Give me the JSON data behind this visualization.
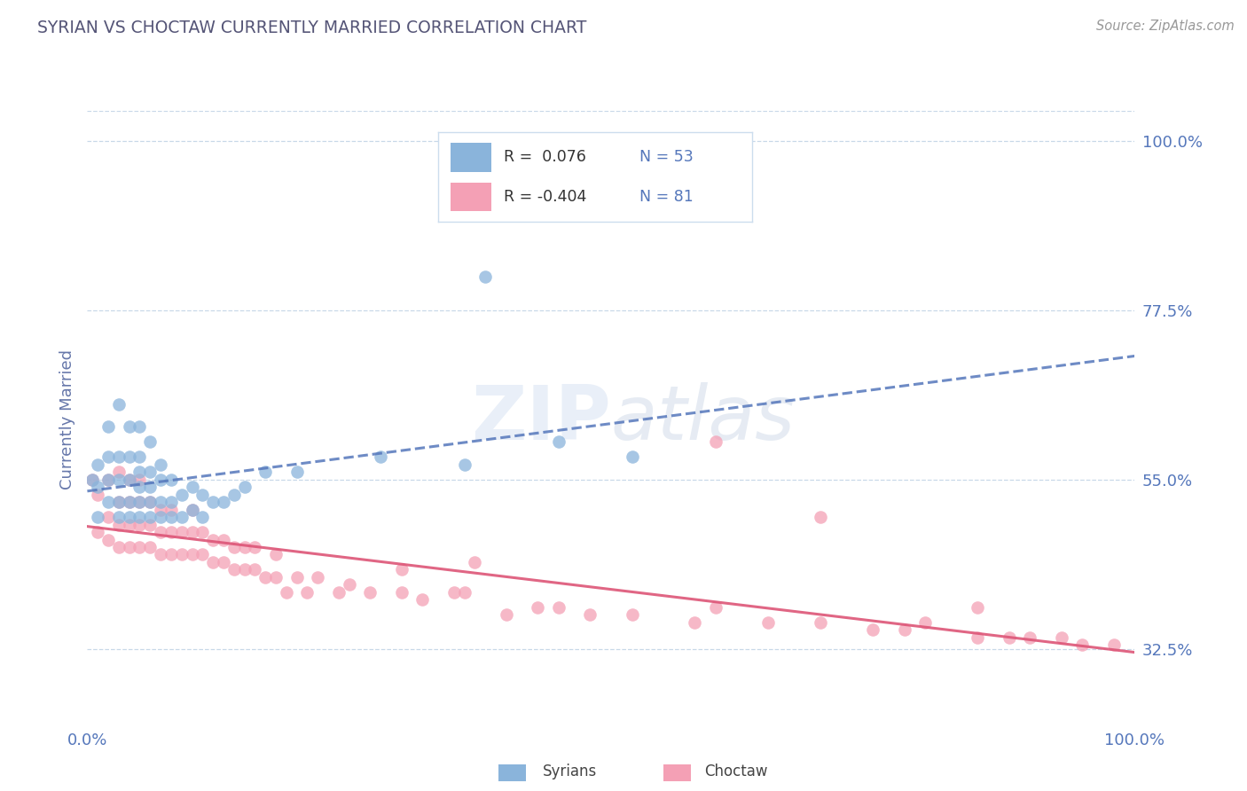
{
  "title": "SYRIAN VS CHOCTAW CURRENTLY MARRIED CORRELATION CHART",
  "source": "Source: ZipAtlas.com",
  "ylabel": "Currently Married",
  "xlim": [
    0.0,
    1.0
  ],
  "ylim": [
    0.22,
    1.04
  ],
  "yticks": [
    0.325,
    0.55,
    0.775,
    1.0
  ],
  "ytick_labels": [
    "32.5%",
    "55.0%",
    "77.5%",
    "100.0%"
  ],
  "xticks": [
    0.0,
    1.0
  ],
  "xtick_labels": [
    "0.0%",
    "100.0%"
  ],
  "color_syrian": "#8ab4db",
  "color_choctaw": "#f4a0b5",
  "color_syrian_line": "#5577bb",
  "color_choctaw_line": "#dd5577",
  "color_title": "#555577",
  "color_source": "#999999",
  "color_ylabel": "#6677aa",
  "color_tick": "#5577bb",
  "color_grid": "#c8d8e8",
  "background_color": "#ffffff",
  "watermark": "ZIPatlas",
  "syrian_x": [
    0.005,
    0.01,
    0.01,
    0.01,
    0.02,
    0.02,
    0.02,
    0.02,
    0.03,
    0.03,
    0.03,
    0.03,
    0.03,
    0.04,
    0.04,
    0.04,
    0.04,
    0.04,
    0.05,
    0.05,
    0.05,
    0.05,
    0.05,
    0.05,
    0.06,
    0.06,
    0.06,
    0.06,
    0.06,
    0.07,
    0.07,
    0.07,
    0.07,
    0.08,
    0.08,
    0.08,
    0.09,
    0.09,
    0.1,
    0.1,
    0.11,
    0.11,
    0.12,
    0.13,
    0.14,
    0.15,
    0.17,
    0.2,
    0.28,
    0.36,
    0.45,
    0.52,
    0.38
  ],
  "syrian_y": [
    0.55,
    0.5,
    0.54,
    0.57,
    0.52,
    0.55,
    0.58,
    0.62,
    0.5,
    0.52,
    0.55,
    0.58,
    0.65,
    0.5,
    0.52,
    0.55,
    0.58,
    0.62,
    0.5,
    0.52,
    0.54,
    0.56,
    0.58,
    0.62,
    0.5,
    0.52,
    0.54,
    0.56,
    0.6,
    0.5,
    0.52,
    0.55,
    0.57,
    0.5,
    0.52,
    0.55,
    0.5,
    0.53,
    0.51,
    0.54,
    0.5,
    0.53,
    0.52,
    0.52,
    0.53,
    0.54,
    0.56,
    0.56,
    0.58,
    0.57,
    0.6,
    0.58,
    0.82
  ],
  "choctaw_x": [
    0.005,
    0.01,
    0.01,
    0.02,
    0.02,
    0.02,
    0.03,
    0.03,
    0.03,
    0.03,
    0.04,
    0.04,
    0.04,
    0.04,
    0.05,
    0.05,
    0.05,
    0.05,
    0.06,
    0.06,
    0.06,
    0.07,
    0.07,
    0.07,
    0.08,
    0.08,
    0.08,
    0.09,
    0.09,
    0.1,
    0.1,
    0.1,
    0.11,
    0.11,
    0.12,
    0.12,
    0.13,
    0.13,
    0.14,
    0.14,
    0.15,
    0.15,
    0.16,
    0.16,
    0.17,
    0.18,
    0.18,
    0.19,
    0.2,
    0.21,
    0.22,
    0.24,
    0.25,
    0.27,
    0.3,
    0.3,
    0.32,
    0.35,
    0.36,
    0.37,
    0.4,
    0.43,
    0.45,
    0.48,
    0.52,
    0.58,
    0.6,
    0.65,
    0.7,
    0.75,
    0.78,
    0.8,
    0.85,
    0.88,
    0.9,
    0.93,
    0.95,
    0.98,
    0.7,
    0.85,
    0.6
  ],
  "choctaw_y": [
    0.55,
    0.48,
    0.53,
    0.47,
    0.5,
    0.55,
    0.46,
    0.49,
    0.52,
    0.56,
    0.46,
    0.49,
    0.52,
    0.55,
    0.46,
    0.49,
    0.52,
    0.55,
    0.46,
    0.49,
    0.52,
    0.45,
    0.48,
    0.51,
    0.45,
    0.48,
    0.51,
    0.45,
    0.48,
    0.45,
    0.48,
    0.51,
    0.45,
    0.48,
    0.44,
    0.47,
    0.44,
    0.47,
    0.43,
    0.46,
    0.43,
    0.46,
    0.43,
    0.46,
    0.42,
    0.42,
    0.45,
    0.4,
    0.42,
    0.4,
    0.42,
    0.4,
    0.41,
    0.4,
    0.4,
    0.43,
    0.39,
    0.4,
    0.4,
    0.44,
    0.37,
    0.38,
    0.38,
    0.37,
    0.37,
    0.36,
    0.38,
    0.36,
    0.36,
    0.35,
    0.35,
    0.36,
    0.34,
    0.34,
    0.34,
    0.34,
    0.33,
    0.33,
    0.5,
    0.38,
    0.6
  ]
}
